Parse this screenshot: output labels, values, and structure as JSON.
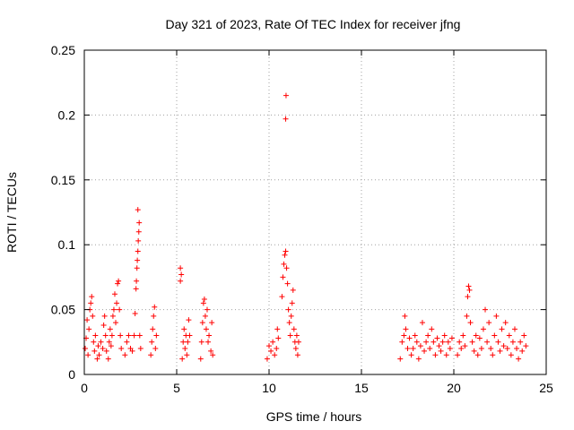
{
  "chart_data": {
    "type": "scatter",
    "title": "Day 321 of 2023, Rate Of TEC Index for receiver jfng",
    "xlabel": "GPS time / hours",
    "ylabel": "ROTI / TECUs",
    "xlim": [
      0,
      25
    ],
    "ylim": [
      0,
      0.25
    ],
    "xticks": [
      0,
      5,
      10,
      15,
      20,
      25
    ],
    "xtick_labels": [
      "0",
      "5",
      "10",
      "15",
      "20",
      "25"
    ],
    "yticks": [
      0,
      0.05,
      0.1,
      0.15,
      0.2,
      0.25
    ],
    "ytick_labels": [
      "0",
      "0.05",
      "0.1",
      "0.15",
      "0.2",
      "0.25"
    ],
    "grid": true,
    "marker": "+",
    "series": [
      {
        "name": "ROTI",
        "color": "#ff0000",
        "points": [
          [
            0.05,
            0.02
          ],
          [
            0.1,
            0.028
          ],
          [
            0.15,
            0.042
          ],
          [
            0.2,
            0.015
          ],
          [
            0.25,
            0.035
          ],
          [
            0.3,
            0.05
          ],
          [
            0.35,
            0.055
          ],
          [
            0.4,
            0.06
          ],
          [
            0.45,
            0.045
          ],
          [
            0.5,
            0.025
          ],
          [
            0.55,
            0.018
          ],
          [
            0.6,
            0.03
          ],
          [
            0.7,
            0.012
          ],
          [
            0.75,
            0.022
          ],
          [
            0.8,
            0.015
          ],
          [
            0.9,
            0.025
          ],
          [
            1.0,
            0.02
          ],
          [
            1.05,
            0.038
          ],
          [
            1.1,
            0.045
          ],
          [
            1.15,
            0.03
          ],
          [
            1.2,
            0.018
          ],
          [
            1.3,
            0.012
          ],
          [
            1.35,
            0.025
          ],
          [
            1.4,
            0.035
          ],
          [
            1.45,
            0.022
          ],
          [
            1.5,
            0.03
          ],
          [
            1.55,
            0.045
          ],
          [
            1.6,
            0.05
          ],
          [
            1.65,
            0.062
          ],
          [
            1.7,
            0.04
          ],
          [
            1.75,
            0.055
          ],
          [
            1.8,
            0.07
          ],
          [
            1.85,
            0.072
          ],
          [
            1.9,
            0.05
          ],
          [
            1.95,
            0.03
          ],
          [
            2.0,
            0.02
          ],
          [
            2.2,
            0.015
          ],
          [
            2.3,
            0.025
          ],
          [
            2.4,
            0.03
          ],
          [
            2.5,
            0.02
          ],
          [
            2.6,
            0.018
          ],
          [
            2.7,
            0.03
          ],
          [
            2.75,
            0.047
          ],
          [
            2.8,
            0.066
          ],
          [
            2.82,
            0.072
          ],
          [
            2.85,
            0.082
          ],
          [
            2.87,
            0.088
          ],
          [
            2.9,
            0.095
          ],
          [
            2.92,
            0.103
          ],
          [
            2.95,
            0.11
          ],
          [
            2.97,
            0.117
          ],
          [
            2.9,
            0.127
          ],
          [
            3.0,
            0.03
          ],
          [
            3.05,
            0.02
          ],
          [
            3.6,
            0.015
          ],
          [
            3.65,
            0.025
          ],
          [
            3.7,
            0.035
          ],
          [
            3.75,
            0.045
          ],
          [
            3.8,
            0.052
          ],
          [
            3.85,
            0.02
          ],
          [
            3.9,
            0.03
          ],
          [
            5.2,
            0.072
          ],
          [
            5.25,
            0.077
          ],
          [
            5.2,
            0.082
          ],
          [
            5.3,
            0.012
          ],
          [
            5.35,
            0.025
          ],
          [
            5.4,
            0.035
          ],
          [
            5.45,
            0.02
          ],
          [
            5.5,
            0.03
          ],
          [
            5.55,
            0.015
          ],
          [
            5.6,
            0.025
          ],
          [
            5.65,
            0.042
          ],
          [
            5.7,
            0.03
          ],
          [
            6.3,
            0.012
          ],
          [
            6.35,
            0.025
          ],
          [
            6.4,
            0.04
          ],
          [
            6.45,
            0.055
          ],
          [
            6.5,
            0.058
          ],
          [
            6.55,
            0.045
          ],
          [
            6.6,
            0.035
          ],
          [
            6.65,
            0.05
          ],
          [
            6.7,
            0.025
          ],
          [
            6.75,
            0.03
          ],
          [
            6.85,
            0.018
          ],
          [
            6.9,
            0.04
          ],
          [
            6.95,
            0.015
          ],
          [
            9.9,
            0.012
          ],
          [
            10.0,
            0.022
          ],
          [
            10.1,
            0.018
          ],
          [
            10.2,
            0.025
          ],
          [
            10.3,
            0.015
          ],
          [
            10.4,
            0.02
          ],
          [
            10.45,
            0.035
          ],
          [
            10.5,
            0.028
          ],
          [
            10.7,
            0.06
          ],
          [
            10.75,
            0.075
          ],
          [
            10.8,
            0.085
          ],
          [
            10.85,
            0.092
          ],
          [
            10.9,
            0.095
          ],
          [
            10.95,
            0.082
          ],
          [
            11.0,
            0.07
          ],
          [
            11.05,
            0.05
          ],
          [
            11.1,
            0.04
          ],
          [
            10.9,
            0.197
          ],
          [
            10.92,
            0.215
          ],
          [
            11.15,
            0.03
          ],
          [
            11.2,
            0.045
          ],
          [
            11.25,
            0.055
          ],
          [
            11.3,
            0.065
          ],
          [
            11.35,
            0.035
          ],
          [
            11.4,
            0.025
          ],
          [
            11.45,
            0.02
          ],
          [
            11.5,
            0.03
          ],
          [
            11.55,
            0.015
          ],
          [
            11.6,
            0.025
          ],
          [
            17.1,
            0.012
          ],
          [
            17.2,
            0.025
          ],
          [
            17.3,
            0.03
          ],
          [
            17.35,
            0.045
          ],
          [
            17.4,
            0.035
          ],
          [
            17.5,
            0.02
          ],
          [
            17.6,
            0.028
          ],
          [
            17.7,
            0.015
          ],
          [
            17.8,
            0.02
          ],
          [
            17.9,
            0.03
          ],
          [
            18.0,
            0.025
          ],
          [
            18.1,
            0.012
          ],
          [
            18.2,
            0.022
          ],
          [
            18.3,
            0.04
          ],
          [
            18.4,
            0.018
          ],
          [
            18.5,
            0.025
          ],
          [
            18.6,
            0.03
          ],
          [
            18.7,
            0.02
          ],
          [
            18.8,
            0.035
          ],
          [
            18.9,
            0.025
          ],
          [
            19.0,
            0.015
          ],
          [
            19.1,
            0.028
          ],
          [
            19.2,
            0.022
          ],
          [
            19.3,
            0.018
          ],
          [
            19.4,
            0.025
          ],
          [
            19.5,
            0.03
          ],
          [
            19.6,
            0.015
          ],
          [
            19.7,
            0.025
          ],
          [
            19.8,
            0.02
          ],
          [
            19.9,
            0.028
          ],
          [
            20.2,
            0.015
          ],
          [
            20.3,
            0.025
          ],
          [
            20.4,
            0.02
          ],
          [
            20.5,
            0.03
          ],
          [
            20.6,
            0.022
          ],
          [
            20.7,
            0.045
          ],
          [
            20.75,
            0.06
          ],
          [
            20.8,
            0.068
          ],
          [
            20.85,
            0.065
          ],
          [
            20.9,
            0.04
          ],
          [
            21.0,
            0.025
          ],
          [
            21.1,
            0.018
          ],
          [
            21.2,
            0.03
          ],
          [
            21.3,
            0.015
          ],
          [
            21.4,
            0.028
          ],
          [
            21.5,
            0.02
          ],
          [
            21.6,
            0.035
          ],
          [
            21.7,
            0.05
          ],
          [
            21.8,
            0.025
          ],
          [
            21.9,
            0.04
          ],
          [
            22.0,
            0.02
          ],
          [
            22.1,
            0.015
          ],
          [
            22.2,
            0.03
          ],
          [
            22.3,
            0.045
          ],
          [
            22.4,
            0.025
          ],
          [
            22.5,
            0.018
          ],
          [
            22.6,
            0.035
          ],
          [
            22.7,
            0.022
          ],
          [
            22.8,
            0.04
          ],
          [
            22.9,
            0.02
          ],
          [
            23.0,
            0.03
          ],
          [
            23.1,
            0.015
          ],
          [
            23.2,
            0.025
          ],
          [
            23.3,
            0.035
          ],
          [
            23.4,
            0.02
          ],
          [
            23.5,
            0.012
          ],
          [
            23.6,
            0.025
          ],
          [
            23.7,
            0.018
          ],
          [
            23.8,
            0.03
          ],
          [
            23.9,
            0.022
          ]
        ]
      }
    ]
  }
}
